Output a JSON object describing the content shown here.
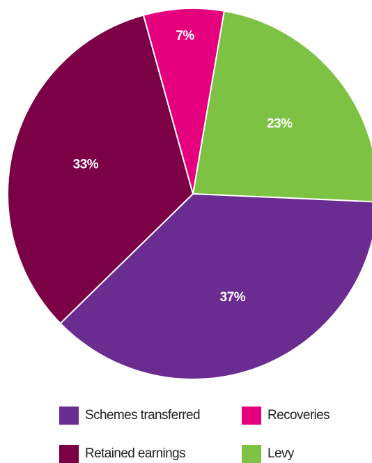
{
  "chart_data": {
    "type": "pie",
    "categories": [
      "Levy",
      "Schemes transferred",
      "Retained earnings",
      "Recoveries"
    ],
    "values": [
      23,
      37,
      33,
      7
    ],
    "value_labels": [
      "23%",
      "37%",
      "33%",
      "7%"
    ],
    "colors": [
      "#7dc242",
      "#6b2c91",
      "#7b0046",
      "#e5007d"
    ]
  }
}
